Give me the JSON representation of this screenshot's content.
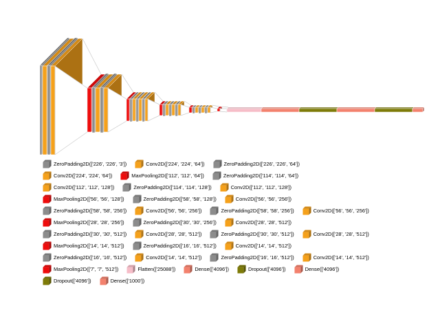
{
  "diagram": {
    "background": "#ffffff",
    "layer_types": {
      "ZeroPadding2D": {
        "color": "#8c8c8c"
      },
      "Conv2D": {
        "color": "#f5a11b"
      },
      "MaxPooling2D": {
        "color": "#ee0c0c"
      },
      "Flatten": {
        "color": "#f6bdc8"
      },
      "Dense": {
        "color": "#f3816d"
      },
      "Dropout": {
        "color": "#7e7b08"
      }
    },
    "layers": [
      {
        "type": "ZeroPadding2D",
        "dims": [
          "226",
          "226",
          "3"
        ]
      },
      {
        "type": "Conv2D",
        "dims": [
          "224",
          "224",
          "64"
        ]
      },
      {
        "type": "ZeroPadding2D",
        "dims": [
          "226",
          "226",
          "64"
        ]
      },
      {
        "type": "Conv2D",
        "dims": [
          "224",
          "224",
          "64"
        ]
      },
      {
        "type": "MaxPooling2D",
        "dims": [
          "112",
          "112",
          "64"
        ]
      },
      {
        "type": "ZeroPadding2D",
        "dims": [
          "114",
          "114",
          "64"
        ]
      },
      {
        "type": "Conv2D",
        "dims": [
          "112",
          "112",
          "128"
        ]
      },
      {
        "type": "ZeroPadding2D",
        "dims": [
          "114",
          "114",
          "128"
        ]
      },
      {
        "type": "Conv2D",
        "dims": [
          "112",
          "112",
          "128"
        ]
      },
      {
        "type": "MaxPooling2D",
        "dims": [
          "56",
          "56",
          "128"
        ]
      },
      {
        "type": "ZeroPadding2D",
        "dims": [
          "58",
          "58",
          "128"
        ]
      },
      {
        "type": "Conv2D",
        "dims": [
          "56",
          "56",
          "256"
        ]
      },
      {
        "type": "ZeroPadding2D",
        "dims": [
          "58",
          "58",
          "256"
        ]
      },
      {
        "type": "Conv2D",
        "dims": [
          "56",
          "56",
          "256"
        ]
      },
      {
        "type": "ZeroPadding2D",
        "dims": [
          "58",
          "58",
          "256"
        ]
      },
      {
        "type": "Conv2D",
        "dims": [
          "56",
          "56",
          "256"
        ]
      },
      {
        "type": "MaxPooling2D",
        "dims": [
          "28",
          "28",
          "256"
        ]
      },
      {
        "type": "ZeroPadding2D",
        "dims": [
          "30",
          "30",
          "256"
        ]
      },
      {
        "type": "Conv2D",
        "dims": [
          "28",
          "28",
          "512"
        ]
      },
      {
        "type": "ZeroPadding2D",
        "dims": [
          "30",
          "30",
          "512"
        ]
      },
      {
        "type": "Conv2D",
        "dims": [
          "28",
          "28",
          "512"
        ]
      },
      {
        "type": "ZeroPadding2D",
        "dims": [
          "30",
          "30",
          "512"
        ]
      },
      {
        "type": "Conv2D",
        "dims": [
          "28",
          "28",
          "512"
        ]
      },
      {
        "type": "MaxPooling2D",
        "dims": [
          "14",
          "14",
          "512"
        ]
      },
      {
        "type": "ZeroPadding2D",
        "dims": [
          "16",
          "16",
          "512"
        ]
      },
      {
        "type": "Conv2D",
        "dims": [
          "14",
          "14",
          "512"
        ]
      },
      {
        "type": "ZeroPadding2D",
        "dims": [
          "16",
          "16",
          "512"
        ]
      },
      {
        "type": "Conv2D",
        "dims": [
          "14",
          "14",
          "512"
        ]
      },
      {
        "type": "ZeroPadding2D",
        "dims": [
          "16",
          "16",
          "512"
        ]
      },
      {
        "type": "Conv2D",
        "dims": [
          "14",
          "14",
          "512"
        ]
      },
      {
        "type": "MaxPooling2D",
        "dims": [
          "7",
          "7",
          "512"
        ]
      },
      {
        "type": "Flatten",
        "dims": [
          "25088"
        ]
      },
      {
        "type": "Dense",
        "dims": [
          "4096"
        ]
      },
      {
        "type": "Dropout",
        "dims": [
          "4096"
        ]
      },
      {
        "type": "Dense",
        "dims": [
          "4096"
        ]
      },
      {
        "type": "Dropout",
        "dims": [
          "4096"
        ]
      },
      {
        "type": "Dense",
        "dims": [
          "1000"
        ]
      }
    ],
    "legend_row_counts": [
      3,
      3,
      3,
      3,
      4,
      3,
      4,
      3,
      4,
      5,
      2
    ]
  }
}
